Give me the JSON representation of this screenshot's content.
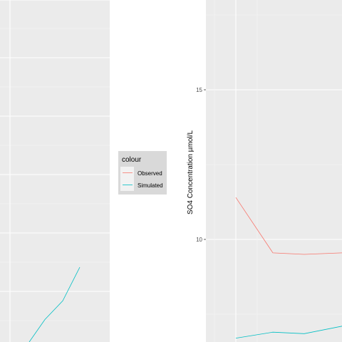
{
  "chart_data": [
    {
      "type": "line",
      "panel": "left",
      "title": "",
      "xlabel": "",
      "ylabel": "",
      "series": [
        {
          "name": "Simulated",
          "color": "#00BFC4",
          "values": [
            0.0,
            0.3,
            0.55,
            1.0
          ]
        }
      ]
    },
    {
      "type": "line",
      "panel": "right",
      "title": "",
      "xlabel": "",
      "ylabel": "SO4 Concentration µmol/L",
      "ylim": [
        6.7,
        18.7
      ],
      "yticks": [
        10,
        15
      ],
      "ytick_labels": [
        "10",
        "15"
      ],
      "grid": true,
      "series": [
        {
          "name": "Observed",
          "color": "#F8766D",
          "values": [
            11.4,
            9.55,
            9.5,
            9.55
          ]
        },
        {
          "name": "Simulated",
          "color": "#00BFC4",
          "values": [
            6.7,
            6.9,
            6.85,
            7.1
          ]
        }
      ]
    }
  ],
  "legend": {
    "title": "colour",
    "entries": [
      {
        "label": "Observed",
        "color": "#F8766D"
      },
      {
        "label": "Simulated",
        "color": "#00BFC4"
      }
    ]
  }
}
